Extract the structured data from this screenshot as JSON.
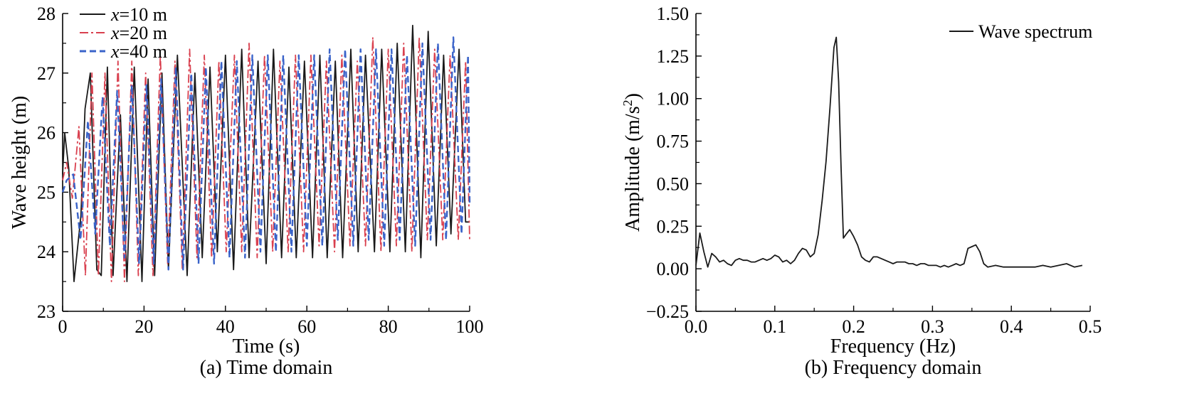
{
  "chart_data": [
    {
      "type": "line",
      "panel_caption": "(a) Time domain",
      "title": "",
      "xlabel": "Time (s)",
      "ylabel": "Wave height (m)",
      "xlim": [
        0,
        100
      ],
      "ylim": [
        23,
        28
      ],
      "xticks": [
        0,
        20,
        40,
        60,
        80,
        100
      ],
      "yticks": [
        23,
        24,
        25,
        26,
        27,
        28
      ],
      "legend_position": "top-left",
      "grid": false,
      "series": [
        {
          "name": "x=10 m",
          "label_var": "x",
          "label_rest": "=10 m",
          "color": "#1a1a1a",
          "dash": "solid",
          "x": [
            0,
            0.5,
            1.5,
            2.8,
            4.5,
            5.5,
            6.8,
            8.4,
            9.5,
            11.0,
            12.4,
            14.2,
            15.8,
            17.6,
            19.5,
            21.0,
            22.6,
            24.4,
            26.0,
            28.2,
            30.6,
            32.5,
            34.3,
            36.2,
            38.0,
            40.0,
            42.0,
            44.0,
            45.8,
            48.0,
            50.0,
            51.8,
            53.8,
            55.6,
            57.4,
            59.4,
            61.4,
            63.2,
            65.0,
            67.0,
            68.8,
            70.8,
            72.6,
            74.4,
            76.6,
            78.4,
            80.4,
            82.2,
            84.2,
            86.0,
            88.0,
            89.8,
            91.8,
            93.6,
            95.4,
            97.4,
            99.0,
            100
          ],
          "y": [
            25.3,
            26.0,
            25.4,
            23.5,
            24.6,
            26.4,
            27.0,
            23.7,
            23.6,
            27.1,
            23.6,
            26.3,
            23.5,
            27.1,
            23.5,
            26.9,
            23.6,
            27.0,
            23.7,
            27.3,
            23.6,
            27.0,
            23.9,
            27.1,
            24.0,
            27.3,
            23.7,
            27.4,
            23.9,
            27.2,
            23.8,
            27.4,
            23.9,
            27.1,
            23.9,
            27.2,
            23.9,
            27.3,
            23.9,
            27.2,
            23.9,
            27.4,
            24.0,
            27.3,
            24.0,
            27.4,
            24.0,
            27.5,
            24.0,
            27.8,
            23.9,
            27.7,
            24.1,
            27.3,
            24.3,
            27.4,
            24.5,
            24.5
          ]
        },
        {
          "name": "x=20 m",
          "label_var": "x",
          "label_rest": "=20 m",
          "color": "#d9404f",
          "dash": "dashdot",
          "x": [
            0,
            1.0,
            2.4,
            4.0,
            5.6,
            7.2,
            8.8,
            10.4,
            12.0,
            13.6,
            15.2,
            17.0,
            18.6,
            20.4,
            22.2,
            24.0,
            25.8,
            27.6,
            29.4,
            31.2,
            33.0,
            34.8,
            36.6,
            38.4,
            40.2,
            42.2,
            44.0,
            45.8,
            47.8,
            49.6,
            51.6,
            53.4,
            55.4,
            57.2,
            59.2,
            61.0,
            63.0,
            64.8,
            66.8,
            68.6,
            70.6,
            72.4,
            74.4,
            76.2,
            78.2,
            80.0,
            82.0,
            83.8,
            85.8,
            87.6,
            89.6,
            91.4,
            93.4,
            95.2,
            97.2,
            99.0,
            100
          ],
          "y": [
            25.2,
            25.5,
            24.9,
            26.1,
            23.6,
            27.0,
            23.6,
            27.0,
            23.5,
            27.2,
            23.5,
            27.2,
            23.6,
            27.0,
            23.6,
            27.3,
            23.8,
            27.2,
            23.7,
            27.4,
            23.9,
            27.3,
            23.9,
            27.2,
            24.0,
            27.3,
            24.0,
            27.5,
            23.9,
            27.3,
            24.0,
            27.2,
            24.0,
            27.3,
            24.0,
            27.3,
            24.1,
            27.2,
            24.0,
            27.3,
            24.1,
            27.2,
            24.1,
            27.6,
            24.0,
            27.4,
            24.1,
            27.5,
            24.0,
            27.6,
            24.2,
            27.4,
            24.2,
            27.3,
            24.2,
            27.2,
            24.2
          ]
        },
        {
          "name": "x=40 m",
          "label_var": "x",
          "label_rest": "=40 m",
          "color": "#3a63c9",
          "dash": "dashed",
          "x": [
            0,
            1.0,
            2.6,
            4.4,
            6.2,
            8.0,
            9.8,
            11.6,
            13.4,
            15.2,
            17.0,
            18.8,
            20.6,
            22.4,
            24.2,
            26.0,
            27.8,
            29.6,
            31.6,
            33.4,
            35.2,
            37.2,
            39.0,
            41.0,
            42.8,
            44.8,
            46.6,
            48.6,
            50.4,
            52.4,
            54.2,
            56.2,
            58.0,
            60.0,
            61.8,
            63.8,
            65.6,
            67.6,
            69.4,
            71.4,
            73.2,
            75.2,
            77.0,
            79.0,
            80.8,
            82.8,
            84.6,
            86.6,
            88.4,
            90.4,
            92.2,
            94.2,
            96.0,
            98.0,
            99.6,
            100
          ],
          "y": [
            25.0,
            25.2,
            25.3,
            24.2,
            26.2,
            24.3,
            26.6,
            24.1,
            26.7,
            23.9,
            26.8,
            23.8,
            26.8,
            23.8,
            26.9,
            23.7,
            27.1,
            23.7,
            27.0,
            23.8,
            27.1,
            23.8,
            27.2,
            23.9,
            27.2,
            23.9,
            27.3,
            24.0,
            27.3,
            24.0,
            27.3,
            24.0,
            27.3,
            24.1,
            27.3,
            24.1,
            27.4,
            24.2,
            27.4,
            24.1,
            27.4,
            24.2,
            27.4,
            24.1,
            27.4,
            24.2,
            27.3,
            24.1,
            27.5,
            24.2,
            27.5,
            24.2,
            27.6,
            24.3,
            27.3,
            24.8
          ]
        }
      ]
    },
    {
      "type": "line",
      "panel_caption": "(b) Frequency domain",
      "title": "",
      "xlabel": "Frequency (Hz)",
      "ylabel_main": "Amplitude (m/s",
      "ylabel_sup": "2",
      "ylabel_end": ")",
      "xlim": [
        0,
        0.5
      ],
      "ylim": [
        -0.25,
        1.5
      ],
      "xticks": [
        "0.0",
        "0.1",
        "0.2",
        "0.3",
        "0.4",
        "0.5"
      ],
      "yticks": [
        "−0.25",
        "0.00",
        "0.25",
        "0.50",
        "0.75",
        "1.00",
        "1.25",
        "1.50"
      ],
      "legend_position": "top-right",
      "grid": false,
      "series": [
        {
          "name": "Wave spectrum",
          "color": "#1a1a1a",
          "dash": "solid",
          "x": [
            0.0,
            0.005,
            0.01,
            0.015,
            0.02,
            0.025,
            0.03,
            0.035,
            0.04,
            0.045,
            0.05,
            0.055,
            0.06,
            0.065,
            0.07,
            0.075,
            0.08,
            0.085,
            0.09,
            0.095,
            0.1,
            0.105,
            0.11,
            0.115,
            0.12,
            0.125,
            0.13,
            0.135,
            0.14,
            0.145,
            0.15,
            0.155,
            0.16,
            0.165,
            0.17,
            0.175,
            0.178,
            0.181,
            0.184,
            0.187,
            0.19,
            0.195,
            0.2,
            0.205,
            0.21,
            0.215,
            0.22,
            0.225,
            0.23,
            0.235,
            0.24,
            0.245,
            0.25,
            0.255,
            0.26,
            0.265,
            0.27,
            0.275,
            0.28,
            0.285,
            0.29,
            0.295,
            0.3,
            0.305,
            0.31,
            0.315,
            0.32,
            0.325,
            0.33,
            0.335,
            0.34,
            0.345,
            0.35,
            0.355,
            0.36,
            0.365,
            0.37,
            0.38,
            0.39,
            0.4,
            0.41,
            0.42,
            0.43,
            0.44,
            0.45,
            0.46,
            0.47,
            0.48,
            0.49
          ],
          "y": [
            0.02,
            0.21,
            0.1,
            0.01,
            0.09,
            0.07,
            0.04,
            0.05,
            0.03,
            0.02,
            0.05,
            0.06,
            0.05,
            0.05,
            0.04,
            0.04,
            0.05,
            0.06,
            0.05,
            0.06,
            0.08,
            0.07,
            0.04,
            0.05,
            0.03,
            0.05,
            0.09,
            0.12,
            0.11,
            0.07,
            0.09,
            0.2,
            0.4,
            0.63,
            0.95,
            1.3,
            1.36,
            1.1,
            0.6,
            0.18,
            0.2,
            0.23,
            0.19,
            0.14,
            0.07,
            0.05,
            0.04,
            0.07,
            0.07,
            0.06,
            0.05,
            0.04,
            0.03,
            0.04,
            0.04,
            0.04,
            0.03,
            0.03,
            0.02,
            0.03,
            0.03,
            0.02,
            0.02,
            0.02,
            0.01,
            0.02,
            0.01,
            0.02,
            0.03,
            0.02,
            0.03,
            0.12,
            0.13,
            0.14,
            0.1,
            0.03,
            0.01,
            0.02,
            0.01,
            0.01,
            0.01,
            0.01,
            0.01,
            0.02,
            0.01,
            0.02,
            0.03,
            0.01,
            0.02
          ]
        }
      ]
    }
  ]
}
